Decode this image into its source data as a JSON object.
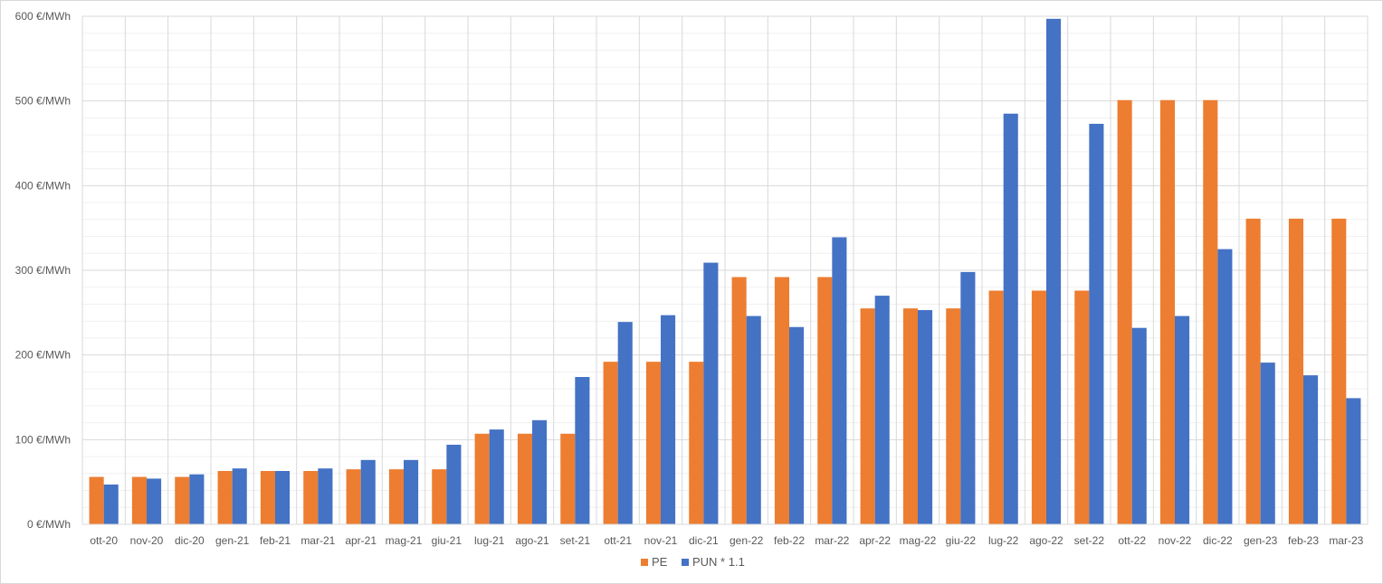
{
  "chart_data": {
    "type": "bar",
    "categories": [
      "ott-20",
      "nov-20",
      "dic-20",
      "gen-21",
      "feb-21",
      "mar-21",
      "apr-21",
      "mag-21",
      "giu-21",
      "lug-21",
      "ago-21",
      "set-21",
      "ott-21",
      "nov-21",
      "dic-21",
      "gen-22",
      "feb-22",
      "mar-22",
      "apr-22",
      "mag-22",
      "giu-22",
      "lug-22",
      "ago-22",
      "set-22",
      "ott-22",
      "nov-22",
      "dic-22",
      "gen-23",
      "feb-23",
      "mar-23"
    ],
    "series": [
      {
        "name": "PE",
        "color": "#ED7D31",
        "values": [
          56,
          56,
          56,
          63,
          63,
          63,
          65,
          65,
          65,
          107,
          107,
          107,
          192,
          192,
          192,
          292,
          292,
          292,
          255,
          255,
          255,
          276,
          276,
          276,
          501,
          501,
          501,
          361,
          361,
          361
        ]
      },
      {
        "name": "PUN * 1.1",
        "color": "#4472C4",
        "values": [
          47,
          54,
          59,
          66,
          63,
          66,
          76,
          76,
          94,
          112,
          123,
          174,
          239,
          247,
          309,
          246,
          233,
          339,
          270,
          253,
          298,
          485,
          597,
          473,
          232,
          246,
          325,
          191,
          176,
          149
        ]
      }
    ],
    "ylim": [
      0,
      600
    ],
    "yticks": [
      {
        "value": 0,
        "label": "0 €/MWh"
      },
      {
        "value": 100,
        "label": "100 €/MWh"
      },
      {
        "value": 200,
        "label": "200 €/MWh"
      },
      {
        "value": 300,
        "label": "300 €/MWh"
      },
      {
        "value": 400,
        "label": "400 €/MWh"
      },
      {
        "value": 500,
        "label": "500 €/MWh"
      },
      {
        "value": 600,
        "label": "600 €/MWh"
      }
    ],
    "title": "",
    "xlabel": "",
    "ylabel": "",
    "grid": true,
    "legend_position": "bottom"
  }
}
